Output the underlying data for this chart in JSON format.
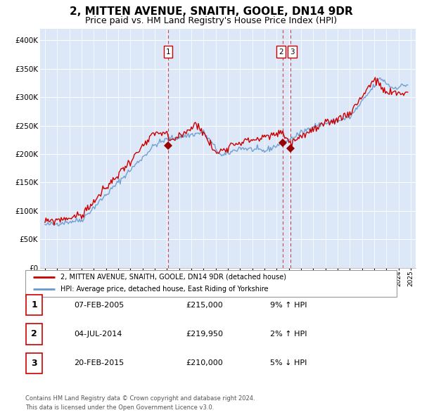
{
  "title": "2, MITTEN AVENUE, SNAITH, GOOLE, DN14 9DR",
  "subtitle": "Price paid vs. HM Land Registry's House Price Index (HPI)",
  "title_fontsize": 11,
  "subtitle_fontsize": 9,
  "ylim": [
    0,
    420000
  ],
  "yticks": [
    0,
    50000,
    100000,
    150000,
    200000,
    250000,
    300000,
    350000,
    400000
  ],
  "ytick_labels": [
    "£0",
    "£50K",
    "£100K",
    "£150K",
    "£200K",
    "£250K",
    "£300K",
    "£350K",
    "£400K"
  ],
  "background_color": "#dce8f8",
  "hpi_line_color": "#6699cc",
  "price_line_color": "#cc0000",
  "marker_color": "#990000",
  "dashed_line_color": "#cc3333",
  "legend_line1": "2, MITTEN AVENUE, SNAITH, GOOLE, DN14 9DR (detached house)",
  "legend_line2": "HPI: Average price, detached house, East Riding of Yorkshire",
  "transactions": [
    {
      "id": 1,
      "date": "07-FEB-2005",
      "year": 2005.1,
      "price": 215000,
      "pct": "9%",
      "dir": "↑"
    },
    {
      "id": 2,
      "date": "04-JUL-2014",
      "year": 2014.5,
      "price": 219950,
      "pct": "2%",
      "dir": "↑"
    },
    {
      "id": 3,
      "date": "20-FEB-2015",
      "year": 2015.15,
      "price": 210000,
      "pct": "5%",
      "dir": "↓"
    }
  ],
  "footer1": "Contains HM Land Registry data © Crown copyright and database right 2024.",
  "footer2": "This data is licensed under the Open Government Licence v3.0.",
  "hpi_data_x": [
    1995.0,
    1995.08,
    1995.17,
    1995.25,
    1995.33,
    1995.42,
    1995.5,
    1995.58,
    1995.67,
    1995.75,
    1995.83,
    1995.92,
    1996.0,
    1996.08,
    1996.17,
    1996.25,
    1996.33,
    1996.42,
    1996.5,
    1996.58,
    1996.67,
    1996.75,
    1996.83,
    1996.92,
    1997.0,
    1997.08,
    1997.17,
    1997.25,
    1997.33,
    1997.42,
    1997.5,
    1997.58,
    1997.67,
    1997.75,
    1997.83,
    1997.92,
    1998.0,
    1998.08,
    1998.17,
    1998.25,
    1998.33,
    1998.42,
    1998.5,
    1998.58,
    1998.67,
    1998.75,
    1998.83,
    1998.92,
    1999.0,
    1999.08,
    1999.17,
    1999.25,
    1999.33,
    1999.42,
    1999.5,
    1999.58,
    1999.67,
    1999.75,
    1999.83,
    1999.92,
    2000.0,
    2000.08,
    2000.17,
    2000.25,
    2000.33,
    2000.42,
    2000.5,
    2000.58,
    2000.67,
    2000.75,
    2000.83,
    2000.92,
    2001.0,
    2001.08,
    2001.17,
    2001.25,
    2001.33,
    2001.42,
    2001.5,
    2001.58,
    2001.67,
    2001.75,
    2001.83,
    2001.92,
    2002.0,
    2002.08,
    2002.17,
    2002.25,
    2002.33,
    2002.42,
    2002.5,
    2002.58,
    2002.67,
    2002.75,
    2002.83,
    2002.92,
    2003.0,
    2003.08,
    2003.17,
    2003.25,
    2003.33,
    2003.42,
    2003.5,
    2003.58,
    2003.67,
    2003.75,
    2003.83,
    2003.92,
    2004.0,
    2004.08,
    2004.17,
    2004.25,
    2004.33,
    2004.42,
    2004.5,
    2004.58,
    2004.67,
    2004.75,
    2004.83,
    2004.92,
    2005.0,
    2005.08,
    2005.17,
    2005.25,
    2005.33,
    2005.42,
    2005.5,
    2005.58,
    2005.67,
    2005.75,
    2005.83,
    2005.92,
    2006.0,
    2006.08,
    2006.17,
    2006.25,
    2006.33,
    2006.42,
    2006.5,
    2006.58,
    2006.67,
    2006.75,
    2006.83,
    2006.92,
    2007.0,
    2007.08,
    2007.17,
    2007.25,
    2007.33,
    2007.42,
    2007.5,
    2007.58,
    2007.67,
    2007.75,
    2007.83,
    2007.92,
    2008.0,
    2008.08,
    2008.17,
    2008.25,
    2008.33,
    2008.42,
    2008.5,
    2008.58,
    2008.67,
    2008.75,
    2008.83,
    2008.92,
    2009.0,
    2009.08,
    2009.17,
    2009.25,
    2009.33,
    2009.42,
    2009.5,
    2009.58,
    2009.67,
    2009.75,
    2009.83,
    2009.92,
    2010.0,
    2010.08,
    2010.17,
    2010.25,
    2010.33,
    2010.42,
    2010.5,
    2010.58,
    2010.67,
    2010.75,
    2010.83,
    2010.92,
    2011.0,
    2011.08,
    2011.17,
    2011.25,
    2011.33,
    2011.42,
    2011.5,
    2011.58,
    2011.67,
    2011.75,
    2011.83,
    2011.92,
    2012.0,
    2012.08,
    2012.17,
    2012.25,
    2012.33,
    2012.42,
    2012.5,
    2012.58,
    2012.67,
    2012.75,
    2012.83,
    2012.92,
    2013.0,
    2013.08,
    2013.17,
    2013.25,
    2013.33,
    2013.42,
    2013.5,
    2013.58,
    2013.67,
    2013.75,
    2013.83,
    2013.92,
    2014.0,
    2014.08,
    2014.17,
    2014.25,
    2014.33,
    2014.42,
    2014.5,
    2014.58,
    2014.67,
    2014.75,
    2014.83,
    2014.92,
    2015.0,
    2015.08,
    2015.17,
    2015.25,
    2015.33,
    2015.42,
    2015.5,
    2015.58,
    2015.67,
    2015.75,
    2015.83,
    2015.92,
    2016.0,
    2016.08,
    2016.17,
    2016.25,
    2016.33,
    2016.42,
    2016.5,
    2016.58,
    2016.67,
    2016.75,
    2016.83,
    2016.92,
    2017.0,
    2017.08,
    2017.17,
    2017.25,
    2017.33,
    2017.42,
    2017.5,
    2017.58,
    2017.67,
    2017.75,
    2017.83,
    2017.92,
    2018.0,
    2018.08,
    2018.17,
    2018.25,
    2018.33,
    2018.42,
    2018.5,
    2018.58,
    2018.67,
    2018.75,
    2018.83,
    2018.92,
    2019.0,
    2019.08,
    2019.17,
    2019.25,
    2019.33,
    2019.42,
    2019.5,
    2019.58,
    2019.67,
    2019.75,
    2019.83,
    2019.92,
    2020.0,
    2020.08,
    2020.17,
    2020.25,
    2020.33,
    2020.42,
    2020.5,
    2020.58,
    2020.67,
    2020.75,
    2020.83,
    2020.92,
    2021.0,
    2021.08,
    2021.17,
    2021.25,
    2021.33,
    2021.42,
    2021.5,
    2021.58,
    2021.67,
    2021.75,
    2021.83,
    2021.92,
    2022.0,
    2022.08,
    2022.17,
    2022.25,
    2022.33,
    2022.42,
    2022.5,
    2022.58,
    2022.67,
    2022.75,
    2022.83,
    2022.92,
    2023.0,
    2023.08,
    2023.17,
    2023.25,
    2023.33,
    2023.42,
    2023.5,
    2023.58,
    2023.67,
    2023.75,
    2023.83,
    2023.92,
    2024.0,
    2024.08,
    2024.17,
    2024.25,
    2024.33,
    2024.42,
    2024.5,
    2024.58,
    2024.67,
    2024.75
  ],
  "price_data_x": [
    1995.0,
    1995.08,
    1995.17,
    1995.25,
    1995.33,
    1995.42,
    1995.5,
    1995.58,
    1995.67,
    1995.75,
    1995.83,
    1995.92,
    1996.0,
    1996.08,
    1996.17,
    1996.25,
    1996.33,
    1996.42,
    1996.5,
    1996.58,
    1996.67,
    1996.75,
    1996.83,
    1996.92,
    1997.0,
    1997.08,
    1997.17,
    1997.25,
    1997.33,
    1997.42,
    1997.5,
    1997.58,
    1997.67,
    1997.75,
    1997.83,
    1997.92,
    1998.0,
    1998.08,
    1998.17,
    1998.25,
    1998.33,
    1998.42,
    1998.5,
    1998.58,
    1998.67,
    1998.75,
    1998.83,
    1998.92,
    1999.0,
    1999.08,
    1999.17,
    1999.25,
    1999.33,
    1999.42,
    1999.5,
    1999.58,
    1999.67,
    1999.75,
    1999.83,
    1999.92,
    2000.0,
    2000.08,
    2000.17,
    2000.25,
    2000.33,
    2000.42,
    2000.5,
    2000.58,
    2000.67,
    2000.75,
    2000.83,
    2000.92,
    2001.0,
    2001.08,
    2001.17,
    2001.25,
    2001.33,
    2001.42,
    2001.5,
    2001.58,
    2001.67,
    2001.75,
    2001.83,
    2001.92,
    2002.0,
    2002.08,
    2002.17,
    2002.25,
    2002.33,
    2002.42,
    2002.5,
    2002.58,
    2002.67,
    2002.75,
    2002.83,
    2002.92,
    2003.0,
    2003.08,
    2003.17,
    2003.25,
    2003.33,
    2003.42,
    2003.5,
    2003.58,
    2003.67,
    2003.75,
    2003.83,
    2003.92,
    2004.0,
    2004.08,
    2004.17,
    2004.25,
    2004.33,
    2004.42,
    2004.5,
    2004.58,
    2004.67,
    2004.75,
    2004.83,
    2004.92,
    2005.0,
    2005.08,
    2005.17,
    2005.25,
    2005.33,
    2005.42,
    2005.5,
    2005.58,
    2005.67,
    2005.75,
    2005.83,
    2005.92,
    2006.0,
    2006.08,
    2006.17,
    2006.25,
    2006.33,
    2006.42,
    2006.5,
    2006.58,
    2006.67,
    2006.75,
    2006.83,
    2006.92,
    2007.0,
    2007.08,
    2007.17,
    2007.25,
    2007.33,
    2007.42,
    2007.5,
    2007.58,
    2007.67,
    2007.75,
    2007.83,
    2007.92,
    2008.0,
    2008.08,
    2008.17,
    2008.25,
    2008.33,
    2008.42,
    2008.5,
    2008.58,
    2008.67,
    2008.75,
    2008.83,
    2008.92,
    2009.0,
    2009.08,
    2009.17,
    2009.25,
    2009.33,
    2009.42,
    2009.5,
    2009.58,
    2009.67,
    2009.75,
    2009.83,
    2009.92,
    2010.0,
    2010.08,
    2010.17,
    2010.25,
    2010.33,
    2010.42,
    2010.5,
    2010.58,
    2010.67,
    2010.75,
    2010.83,
    2010.92,
    2011.0,
    2011.08,
    2011.17,
    2011.25,
    2011.33,
    2011.42,
    2011.5,
    2011.58,
    2011.67,
    2011.75,
    2011.83,
    2011.92,
    2012.0,
    2012.08,
    2012.17,
    2012.25,
    2012.33,
    2012.42,
    2012.5,
    2012.58,
    2012.67,
    2012.75,
    2012.83,
    2012.92,
    2013.0,
    2013.08,
    2013.17,
    2013.25,
    2013.33,
    2013.42,
    2013.5,
    2013.58,
    2013.67,
    2013.75,
    2013.83,
    2013.92,
    2014.0,
    2014.08,
    2014.17,
    2014.25,
    2014.33,
    2014.42,
    2014.5,
    2014.58,
    2014.67,
    2014.75,
    2014.83,
    2014.92,
    2015.0,
    2015.08,
    2015.17,
    2015.25,
    2015.33,
    2015.42,
    2015.5,
    2015.58,
    2015.67,
    2015.75,
    2015.83,
    2015.92,
    2016.0,
    2016.08,
    2016.17,
    2016.25,
    2016.33,
    2016.42,
    2016.5,
    2016.58,
    2016.67,
    2016.75,
    2016.83,
    2016.92,
    2017.0,
    2017.08,
    2017.17,
    2017.25,
    2017.33,
    2017.42,
    2017.5,
    2017.58,
    2017.67,
    2017.75,
    2017.83,
    2017.92,
    2018.0,
    2018.08,
    2018.17,
    2018.25,
    2018.33,
    2018.42,
    2018.5,
    2018.58,
    2018.67,
    2018.75,
    2018.83,
    2018.92,
    2019.0,
    2019.08,
    2019.17,
    2019.25,
    2019.33,
    2019.42,
    2019.5,
    2019.58,
    2019.67,
    2019.75,
    2019.83,
    2019.92,
    2020.0,
    2020.08,
    2020.17,
    2020.25,
    2020.33,
    2020.42,
    2020.5,
    2020.58,
    2020.67,
    2020.75,
    2020.83,
    2020.92,
    2021.0,
    2021.08,
    2021.17,
    2021.25,
    2021.33,
    2021.42,
    2021.5,
    2021.58,
    2021.67,
    2021.75,
    2021.83,
    2021.92,
    2022.0,
    2022.08,
    2022.17,
    2022.25,
    2022.33,
    2022.42,
    2022.5,
    2022.58,
    2022.67,
    2022.75,
    2022.83,
    2022.92,
    2023.0,
    2023.08,
    2023.17,
    2023.25,
    2023.33,
    2023.42,
    2023.5,
    2023.58,
    2023.67,
    2023.75,
    2023.83,
    2023.92,
    2024.0,
    2024.08,
    2024.17,
    2024.25,
    2024.33,
    2024.42,
    2024.5,
    2024.58,
    2024.67,
    2024.75
  ]
}
